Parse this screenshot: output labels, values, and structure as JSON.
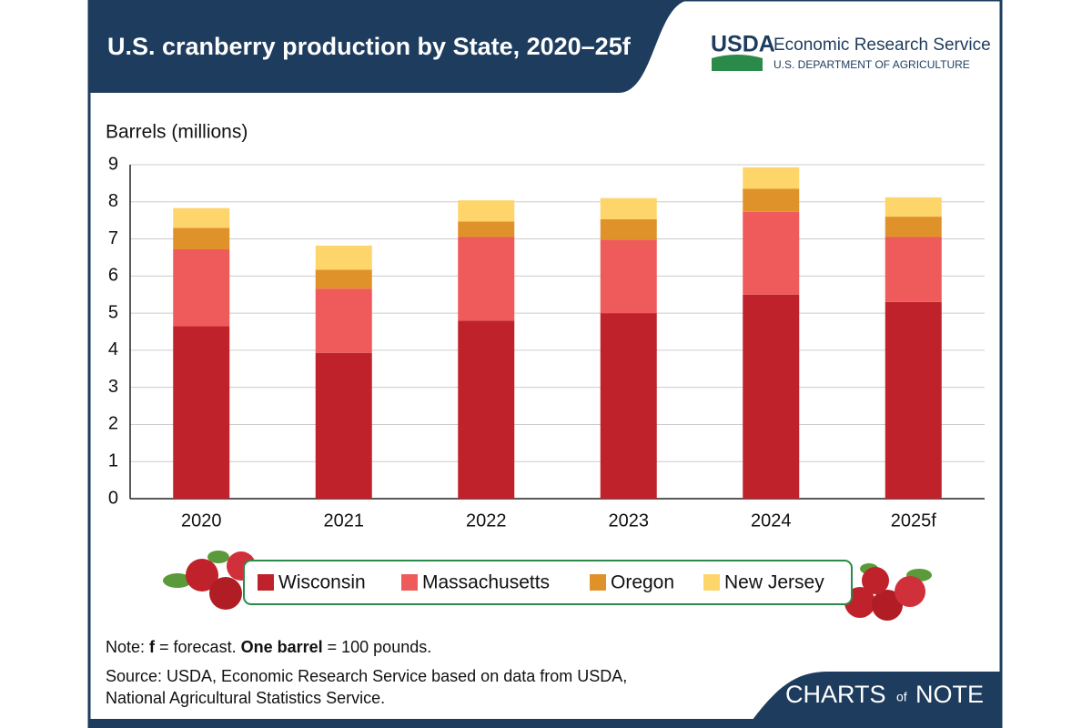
{
  "chart_data": {
    "type": "stacked-bar",
    "title": "U.S. cranberry production by State, 2020–25f",
    "y_label": "Barrels (millions)",
    "categories": [
      "2020",
      "2021",
      "2022",
      "2023",
      "2024",
      "2025f"
    ],
    "series": [
      {
        "name": "Wisconsin",
        "color": "#c0222b",
        "values": [
          4.65,
          3.93,
          4.8,
          5.0,
          5.5,
          5.3
        ]
      },
      {
        "name": "Massachusetts",
        "color": "#ef5a5a",
        "values": [
          2.07,
          1.73,
          2.25,
          1.98,
          2.23,
          1.75
        ]
      },
      {
        "name": "Oregon",
        "color": "#e0922a",
        "values": [
          0.58,
          0.51,
          0.42,
          0.55,
          0.62,
          0.55
        ]
      },
      {
        "name": "New Jersey",
        "color": "#fdd56a",
        "values": [
          0.53,
          0.65,
          0.57,
          0.57,
          0.58,
          0.52
        ]
      }
    ],
    "ylim": [
      0,
      9
    ],
    "yticks": [
      0,
      1,
      2,
      3,
      4,
      5,
      6,
      7,
      8,
      9
    ],
    "grid": true,
    "note": [
      "Note: ",
      "f",
      " = forecast. ",
      "One barrel",
      " = 100 pounds."
    ],
    "source": [
      "Source: USDA, Economic Research Service based on data from USDA,",
      "National Agricultural Statistics Service."
    ]
  },
  "branding": {
    "usda": "USDA",
    "agency": "Economic Research Service",
    "department": "U.S. DEPARTMENT OF AGRICULTURE",
    "series_name": [
      "CHARTS",
      "of",
      "NOTE"
    ]
  }
}
